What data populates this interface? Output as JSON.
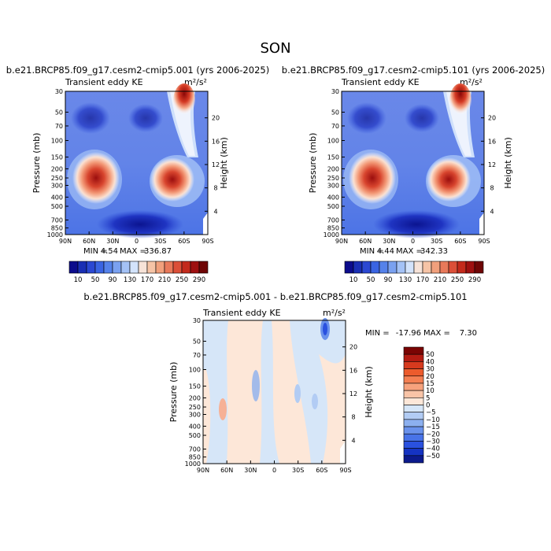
{
  "title": "SON",
  "chart_data": [
    {
      "type": "heatmap",
      "panel": "top-left",
      "title": "b.e21.BRCP85.f09_g17.cesm2-cmip5.001 (yrs 2006-2025)",
      "variable": "Transient eddy KE",
      "units": "m²/s²",
      "xlabel": "",
      "ylabel": "Pressure (mb)",
      "y2label": "Height (km)",
      "x_ticks": [
        "90N",
        "60N",
        "30N",
        "0",
        "30S",
        "60S",
        "90S"
      ],
      "y_ticks": [
        30,
        50,
        70,
        100,
        150,
        200,
        250,
        300,
        400,
        500,
        700,
        850,
        1000
      ],
      "y_scale": "log",
      "y_range": [
        1000,
        30
      ],
      "height_ticks": [
        4,
        8,
        12,
        16,
        20
      ],
      "min": 4.54,
      "max": 336.87,
      "min_label": "MIN =",
      "min_value": "4.54",
      "max_label": "MAX =",
      "max_value": "336.87",
      "colorbar_levels": [
        10,
        30,
        50,
        70,
        90,
        110,
        130,
        150,
        170,
        190,
        210,
        230,
        250,
        270,
        290
      ],
      "colorbar_labels": [
        "10",
        "50",
        "90",
        "130",
        "170",
        "210",
        "250",
        "290"
      ],
      "colorbar_colors": [
        "#0c0c8c",
        "#1a2fb4",
        "#2b48d2",
        "#3a64e2",
        "#5582ea",
        "#7aa1f0",
        "#a4c2f6",
        "#d3e3fb",
        "#f7e3d8",
        "#f6c4a6",
        "#f1a07c",
        "#e8795a",
        "#db4f38",
        "#c32a1c",
        "#9e1010",
        "#6e0505"
      ],
      "features": [
        {
          "name": "southern-hemisphere-jet-core",
          "lat": -45,
          "pressure": 270,
          "value": 280
        },
        {
          "name": "northern-hemisphere-jet-core",
          "lat": 38,
          "pressure": 270,
          "value": 260
        },
        {
          "name": "southern-stratospheric-max",
          "lat": -60,
          "pressure": 30,
          "value": 336
        }
      ]
    },
    {
      "type": "heatmap",
      "panel": "top-right",
      "title": "b.e21.BRCP85.f09_g17.cesm2-cmip5.101 (yrs 2006-2025)",
      "variable": "Transient eddy KE",
      "units": "m²/s²",
      "xlabel": "",
      "ylabel": "Pressure (mb)",
      "y2label": "Height (km)",
      "x_ticks": [
        "90N",
        "60N",
        "30N",
        "0",
        "30S",
        "60S",
        "90S"
      ],
      "y_ticks": [
        30,
        50,
        70,
        100,
        150,
        200,
        250,
        300,
        400,
        500,
        700,
        850,
        1000
      ],
      "y_scale": "log",
      "y_range": [
        1000,
        30
      ],
      "height_ticks": [
        4,
        8,
        12,
        16,
        20
      ],
      "min": 4.44,
      "max": 342.33,
      "min_label": "MIN =",
      "min_value": "4.44",
      "max_label": "MAX =",
      "max_value": "342.33",
      "colorbar_levels": [
        10,
        30,
        50,
        70,
        90,
        110,
        130,
        150,
        170,
        190,
        210,
        230,
        250,
        270,
        290
      ],
      "colorbar_labels": [
        "10",
        "50",
        "90",
        "130",
        "170",
        "210",
        "250",
        "290"
      ],
      "colorbar_colors": [
        "#0c0c8c",
        "#1a2fb4",
        "#2b48d2",
        "#3a64e2",
        "#5582ea",
        "#7aa1f0",
        "#a4c2f6",
        "#d3e3fb",
        "#f7e3d8",
        "#f6c4a6",
        "#f1a07c",
        "#e8795a",
        "#db4f38",
        "#c32a1c",
        "#9e1010",
        "#6e0505"
      ],
      "features": [
        {
          "name": "southern-hemisphere-jet-core",
          "lat": -45,
          "pressure": 270,
          "value": 285
        },
        {
          "name": "northern-hemisphere-jet-core",
          "lat": 38,
          "pressure": 270,
          "value": 262
        },
        {
          "name": "southern-stratospheric-max",
          "lat": -60,
          "pressure": 30,
          "value": 342
        }
      ]
    },
    {
      "type": "heatmap",
      "panel": "bottom-difference",
      "title": "b.e21.BRCP85.f09_g17.cesm2-cmip5.001 - b.e21.BRCP85.f09_g17.cesm2-cmip5.101",
      "variable": "Transient eddy KE",
      "units": "m²/s²",
      "xlabel": "",
      "ylabel": "Pressure (mb)",
      "y2label": "Height (km)",
      "x_ticks": [
        "90N",
        "60N",
        "30N",
        "0",
        "30S",
        "60S",
        "90S"
      ],
      "y_ticks": [
        30,
        50,
        70,
        100,
        150,
        200,
        250,
        300,
        400,
        500,
        700,
        850,
        1000
      ],
      "y_scale": "log",
      "y_range": [
        1000,
        30
      ],
      "height_ticks": [
        4,
        8,
        12,
        16,
        20
      ],
      "min": -17.96,
      "max": 7.3,
      "min_label": "MIN =",
      "min_value": "-17.96",
      "max_label": "MAX =",
      "max_value": "7.30",
      "colorbar_levels": [
        -50,
        -40,
        -30,
        -20,
        -15,
        -10,
        -5,
        0,
        5,
        10,
        15,
        20,
        30,
        40,
        50
      ],
      "colorbar_labels": [
        "50",
        "40",
        "30",
        "20",
        "15",
        "10",
        "5",
        "0",
        "−5",
        "−10",
        "−15",
        "−20",
        "−30",
        "−40",
        "−50"
      ],
      "colorbar_colors": [
        "#7a0403",
        "#b31b12",
        "#d63a1e",
        "#ec5b2c",
        "#f47f52",
        "#f7a27d",
        "#f9c4a7",
        "#fde7d8",
        "#d6e6f8",
        "#b2ccf4",
        "#8cb0ef",
        "#6a92ec",
        "#4873e8",
        "#2a51df",
        "#1533c2",
        "#0c1a8c"
      ]
    }
  ]
}
